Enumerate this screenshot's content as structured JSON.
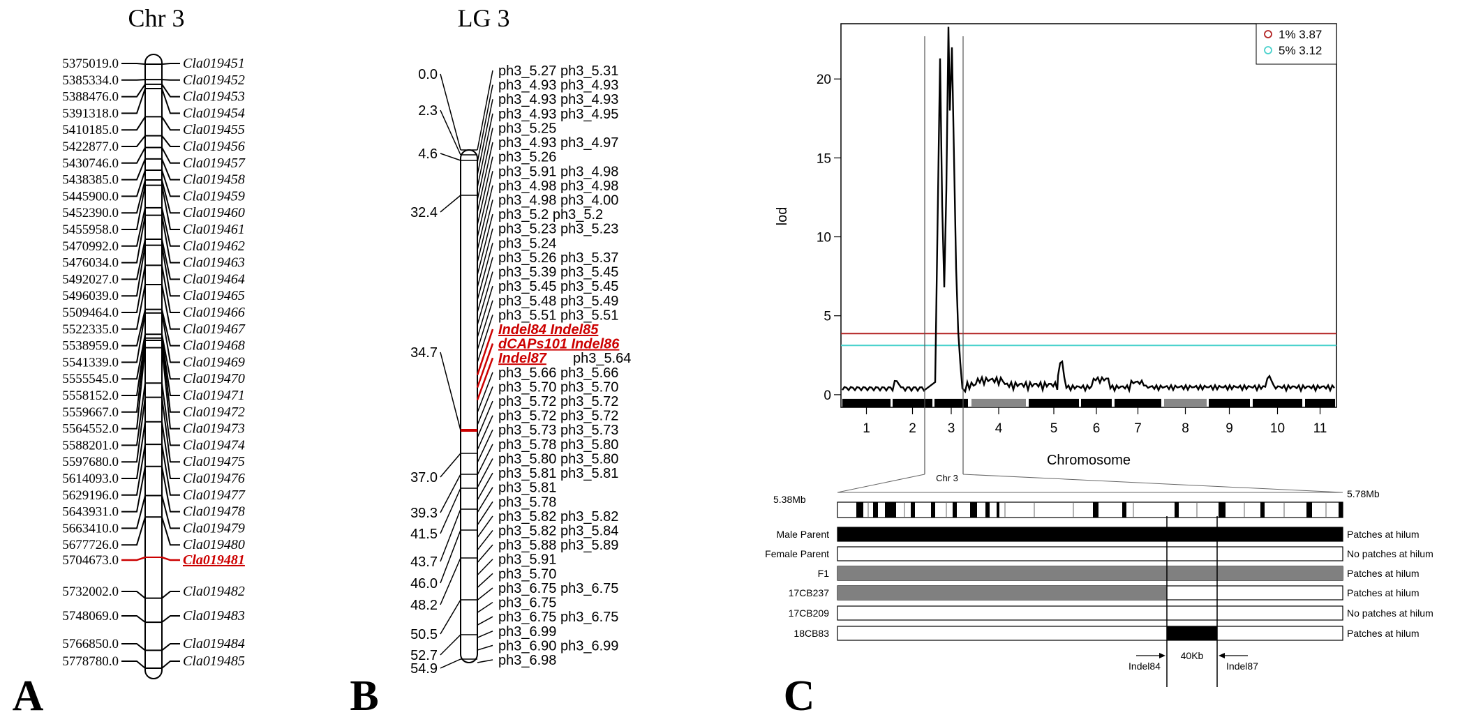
{
  "panelA": {
    "panel_label": "A",
    "title": "Chr 3",
    "markers": [
      {
        "pos": "5375019.0",
        "gene": "Cla019451"
      },
      {
        "pos": "5385334.0",
        "gene": "Cla019452"
      },
      {
        "pos": "5388476.0",
        "gene": "Cla019453"
      },
      {
        "pos": "5391318.0",
        "gene": "Cla019454"
      },
      {
        "pos": "5410185.0",
        "gene": "Cla019455"
      },
      {
        "pos": "5422877.0",
        "gene": "Cla019456"
      },
      {
        "pos": "5430746.0",
        "gene": "Cla019457"
      },
      {
        "pos": "5438385.0",
        "gene": "Cla019458"
      },
      {
        "pos": "5445900.0",
        "gene": "Cla019459"
      },
      {
        "pos": "5452390.0",
        "gene": "Cla019460"
      },
      {
        "pos": "5455958.0",
        "gene": "Cla019461"
      },
      {
        "pos": "5470992.0",
        "gene": "Cla019462"
      },
      {
        "pos": "5476034.0",
        "gene": "Cla019463"
      },
      {
        "pos": "5492027.0",
        "gene": "Cla019464"
      },
      {
        "pos": "5496039.0",
        "gene": "Cla019465"
      },
      {
        "pos": "5509464.0",
        "gene": "Cla019466"
      },
      {
        "pos": "5522335.0",
        "gene": "Cla019467"
      },
      {
        "pos": "5538959.0",
        "gene": "Cla019468"
      },
      {
        "pos": "5541339.0",
        "gene": "Cla019469"
      },
      {
        "pos": "5555545.0",
        "gene": "Cla019470"
      },
      {
        "pos": "5558152.0",
        "gene": "Cla019471"
      },
      {
        "pos": "5559667.0",
        "gene": "Cla019472"
      },
      {
        "pos": "5564552.0",
        "gene": "Cla019473"
      },
      {
        "pos": "5588201.0",
        "gene": "Cla019474"
      },
      {
        "pos": "5597680.0",
        "gene": "Cla019475"
      },
      {
        "pos": "5614093.0",
        "gene": "Cla019476"
      },
      {
        "pos": "5629196.0",
        "gene": "Cla019477"
      },
      {
        "pos": "5643931.0",
        "gene": "Cla019478"
      },
      {
        "pos": "5663410.0",
        "gene": "Cla019479"
      },
      {
        "pos": "5677726.0",
        "gene": "Cla019480"
      },
      {
        "pos": "5704673.0",
        "gene": "Cla019481",
        "highlight": true
      },
      {
        "pos": "5732002.0",
        "gene": "Cla019482"
      },
      {
        "pos": "5748069.0",
        "gene": "Cla019483"
      },
      {
        "pos": "5766850.0",
        "gene": "Cla019484"
      },
      {
        "pos": "5778780.0",
        "gene": "Cla019485"
      }
    ],
    "highlight_color": "#cc0000"
  },
  "panelB": {
    "panel_label": "B",
    "title": "LG 3",
    "left_labels": [
      "0.0",
      "2.3",
      "4.6",
      "32.4",
      "34.7",
      "37.0",
      "39.3",
      "41.5",
      "43.7",
      "46.0",
      "48.2",
      "50.5",
      "52.7",
      "54.9"
    ],
    "right_labels": [
      {
        "text": "ph3_5.27 ph3_5.31"
      },
      {
        "text": "ph3_4.93 ph3_4.93"
      },
      {
        "text": "ph3_4.93 ph3_4.93"
      },
      {
        "text": "ph3_4.93 ph3_4.95"
      },
      {
        "text": "ph3_5.25"
      },
      {
        "text": "ph3_4.93 ph3_4.97"
      },
      {
        "text": "ph3_5.26"
      },
      {
        "text": "ph3_5.91 ph3_4.98"
      },
      {
        "text": "ph3_4.98 ph3_4.98"
      },
      {
        "text": "ph3_4.98 ph3_4.00"
      },
      {
        "text": "ph3_5.2 ph3_5.2"
      },
      {
        "text": "ph3_5.23 ph3_5.23"
      },
      {
        "text": "ph3_5.24"
      },
      {
        "text": "ph3_5.26 ph3_5.37"
      },
      {
        "text": "ph3_5.39 ph3_5.45"
      },
      {
        "text": "ph3_5.45 ph3_5.45"
      },
      {
        "text": "ph3_5.48 ph3_5.49"
      },
      {
        "text": "ph3_5.51 ph3_5.51"
      },
      {
        "text": "Indel84 Indel85",
        "highlight": true
      },
      {
        "text": "dCAPs101 Indel86",
        "highlight": true
      },
      {
        "text": "Indel87",
        "highlight": true,
        "suffix": " ph3_5.64"
      },
      {
        "text": "ph3_5.66 ph3_5.66"
      },
      {
        "text": "ph3_5.70 ph3_5.70"
      },
      {
        "text": "ph3_5.72 ph3_5.72"
      },
      {
        "text": "ph3_5.72 ph3_5.72"
      },
      {
        "text": "ph3_5.73 ph3_5.73"
      },
      {
        "text": "ph3_5.78 ph3_5.80"
      },
      {
        "text": "ph3_5.80 ph3_5.80"
      },
      {
        "text": "ph3_5.81 ph3_5.81"
      },
      {
        "text": "ph3_5.81"
      },
      {
        "text": "ph3_5.78"
      },
      {
        "text": "ph3_5.82 ph3_5.82"
      },
      {
        "text": "ph3_5.82 ph3_5.84"
      },
      {
        "text": "ph3_5.88 ph3_5.89"
      },
      {
        "text": "ph3_5.91"
      },
      {
        "text": "ph3_5.70"
      },
      {
        "text": "ph3_6.75 ph3_6.75"
      },
      {
        "text": "ph3_6.75"
      },
      {
        "text": "ph3_6.75 ph3_6.75"
      },
      {
        "text": "ph3_6.99"
      },
      {
        "text": "ph3_6.90 ph3_6.99"
      },
      {
        "text": "ph3_6.98"
      }
    ]
  },
  "panelC": {
    "panel_label": "C",
    "chart_data": {
      "type": "line",
      "xlabel": "Chromosome",
      "ylabel": "lod",
      "ylim": [
        0,
        23.5
      ],
      "yticks": [
        0,
        5,
        10,
        15,
        20
      ],
      "chromosomes": [
        "1",
        "2",
        "3",
        "4",
        "5",
        "6",
        "7",
        "8",
        "9",
        "10",
        "11"
      ],
      "thresholds": [
        {
          "name": "1% 3.87",
          "value": 3.87,
          "color": "#b22222"
        },
        {
          "name": "5% 3.12",
          "value": 3.12,
          "color": "#48d1cc"
        }
      ],
      "legend_position": "top-right",
      "peak": {
        "chromosome": "3",
        "max_lod": 23.3
      }
    },
    "zoom_label": "Chr 3",
    "range_start": "5.38Mb",
    "range_end": "5.78Mb",
    "genotypes": [
      {
        "name": "Male Parent",
        "phenotype": "Patches at hilum"
      },
      {
        "name": "Female Parent",
        "phenotype": "No patches at hilum"
      },
      {
        "name": "F1",
        "phenotype": "Patches at hilum"
      },
      {
        "name": "17CB237",
        "phenotype": "Patches at hilum"
      },
      {
        "name": "17CB209",
        "phenotype": "No patches at hilum"
      },
      {
        "name": "18CB83",
        "phenotype": "Patches at hilum"
      }
    ],
    "left_marker": "Indel84",
    "right_marker": "Indel87",
    "interval": "40Kb"
  }
}
